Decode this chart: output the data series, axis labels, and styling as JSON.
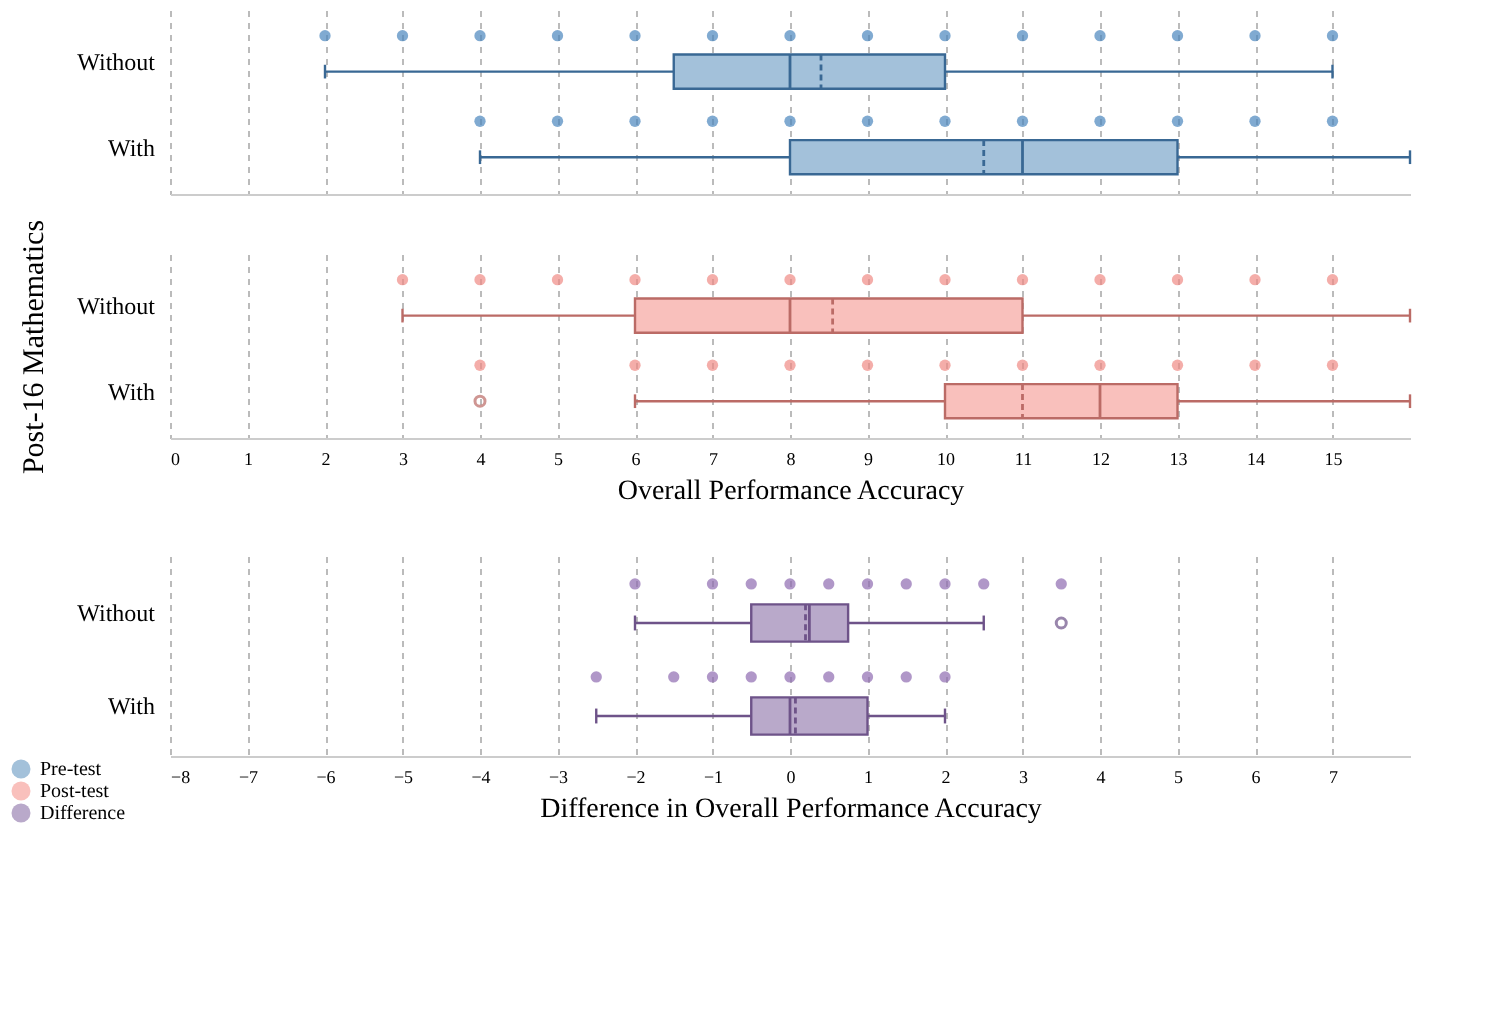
{
  "chart_data": [
    {
      "type": "box",
      "orientation": "horizontal",
      "categories": [
        "Without",
        "With"
      ],
      "xlim": [
        0,
        16
      ],
      "xticks": [
        0,
        1,
        2,
        3,
        4,
        5,
        6,
        7,
        8,
        9,
        10,
        11,
        12,
        13,
        14,
        15
      ],
      "grid": "x",
      "tick_labels": "y",
      "series": [
        {
          "name": "Pre-test",
          "type": "box",
          "color": "#a3c1da",
          "boxes": [
            {
              "low": 2,
              "q1": 6.5,
              "median": 8,
              "q3": 10,
              "high": 15,
              "mean": 8.4
            },
            {
              "low": 4,
              "q1": 8,
              "median": 11,
              "q3": 13,
              "high": 16,
              "mean": 10.5
            }
          ]
        },
        {
          "type": "scatter",
          "color": "#4a86be",
          "x": [
            "Without",
            "Without",
            "Without",
            "Without",
            "Without",
            "Without",
            "Without",
            "Without",
            "Without",
            "Without",
            "Without",
            "Without",
            "Without",
            "Without",
            "With",
            "With",
            "With",
            "With",
            "With",
            "With",
            "With",
            "With",
            "With",
            "With",
            "With",
            "With"
          ],
          "values": [
            2,
            3,
            4,
            5,
            6,
            7,
            8,
            9,
            10,
            11,
            12,
            13,
            14,
            15,
            4,
            5,
            6,
            7,
            8,
            9,
            10,
            11,
            12,
            13,
            14,
            15
          ]
        }
      ]
    },
    {
      "type": "box",
      "orientation": "horizontal",
      "xlabel": "Overall Performance Accuracy",
      "ylabel": "Post-16 Mathematics",
      "categories": [
        "Without",
        "With"
      ],
      "xlim": [
        0,
        16
      ],
      "xticks": [
        0,
        1,
        2,
        3,
        4,
        5,
        6,
        7,
        8,
        9,
        10,
        11,
        12,
        13,
        14,
        15
      ],
      "grid": "x",
      "series": [
        {
          "name": "Post-test",
          "type": "box",
          "color": "#f9c0bc",
          "boxes": [
            {
              "low": 3,
              "q1": 6,
              "median": 8,
              "q3": 11,
              "high": 16,
              "mean": 8.55
            },
            {
              "low": 6,
              "q1": 10,
              "median": 12,
              "q3": 13,
              "high": 16,
              "mean": 11,
              "outliers": [
                4
              ]
            }
          ]
        },
        {
          "type": "scatter",
          "color": "#f08a84",
          "x": [
            "Without",
            "Without",
            "Without",
            "Without",
            "Without",
            "Without",
            "Without",
            "Without",
            "Without",
            "Without",
            "Without",
            "Without",
            "Without",
            "With",
            "With",
            "With",
            "With",
            "With",
            "With",
            "With",
            "With",
            "With",
            "With",
            "With"
          ],
          "values": [
            3,
            4,
            5,
            6,
            7,
            8,
            9,
            10,
            11,
            12,
            13,
            14,
            15,
            4,
            6,
            7,
            8,
            9,
            10,
            11,
            12,
            13,
            14,
            15
          ]
        }
      ]
    },
    {
      "type": "box",
      "orientation": "horizontal",
      "xlabel": "Difference in Overall Performance Accuracy",
      "categories": [
        "Without",
        "With"
      ],
      "xlim": [
        -8,
        8
      ],
      "xticks": [
        -8,
        -7,
        -6,
        -5,
        -4,
        -3,
        -2,
        -1,
        0,
        1,
        2,
        3,
        4,
        5,
        6,
        7
      ],
      "grid": "x",
      "legend": "bottom left",
      "series": [
        {
          "name": "Difference",
          "type": "box",
          "color": "#b9a9ca",
          "boxes": [
            {
              "low": -2,
              "q1": -0.5,
              "median": 0.25,
              "q3": 0.75,
              "high": 2.5,
              "mean": 0.2,
              "outliers": [
                3.5
              ]
            },
            {
              "low": -2.5,
              "q1": -0.5,
              "median": 0,
              "q3": 1,
              "high": 2,
              "mean": 0.07
            }
          ]
        },
        {
          "type": "scatter",
          "color": "#8e6bb0",
          "x": [
            "Without",
            "Without",
            "Without",
            "Without",
            "Without",
            "Without",
            "Without",
            "Without",
            "Without",
            "Without",
            "With",
            "With",
            "With",
            "With",
            "With",
            "With",
            "With",
            "With",
            "With"
          ],
          "values": [
            -2,
            -1,
            -0.5,
            0,
            0.5,
            1,
            1.5,
            2,
            2.5,
            3.5,
            -2.5,
            -1.5,
            -1,
            -0.5,
            0,
            0.5,
            1,
            1.5,
            2
          ]
        }
      ]
    }
  ]
}
